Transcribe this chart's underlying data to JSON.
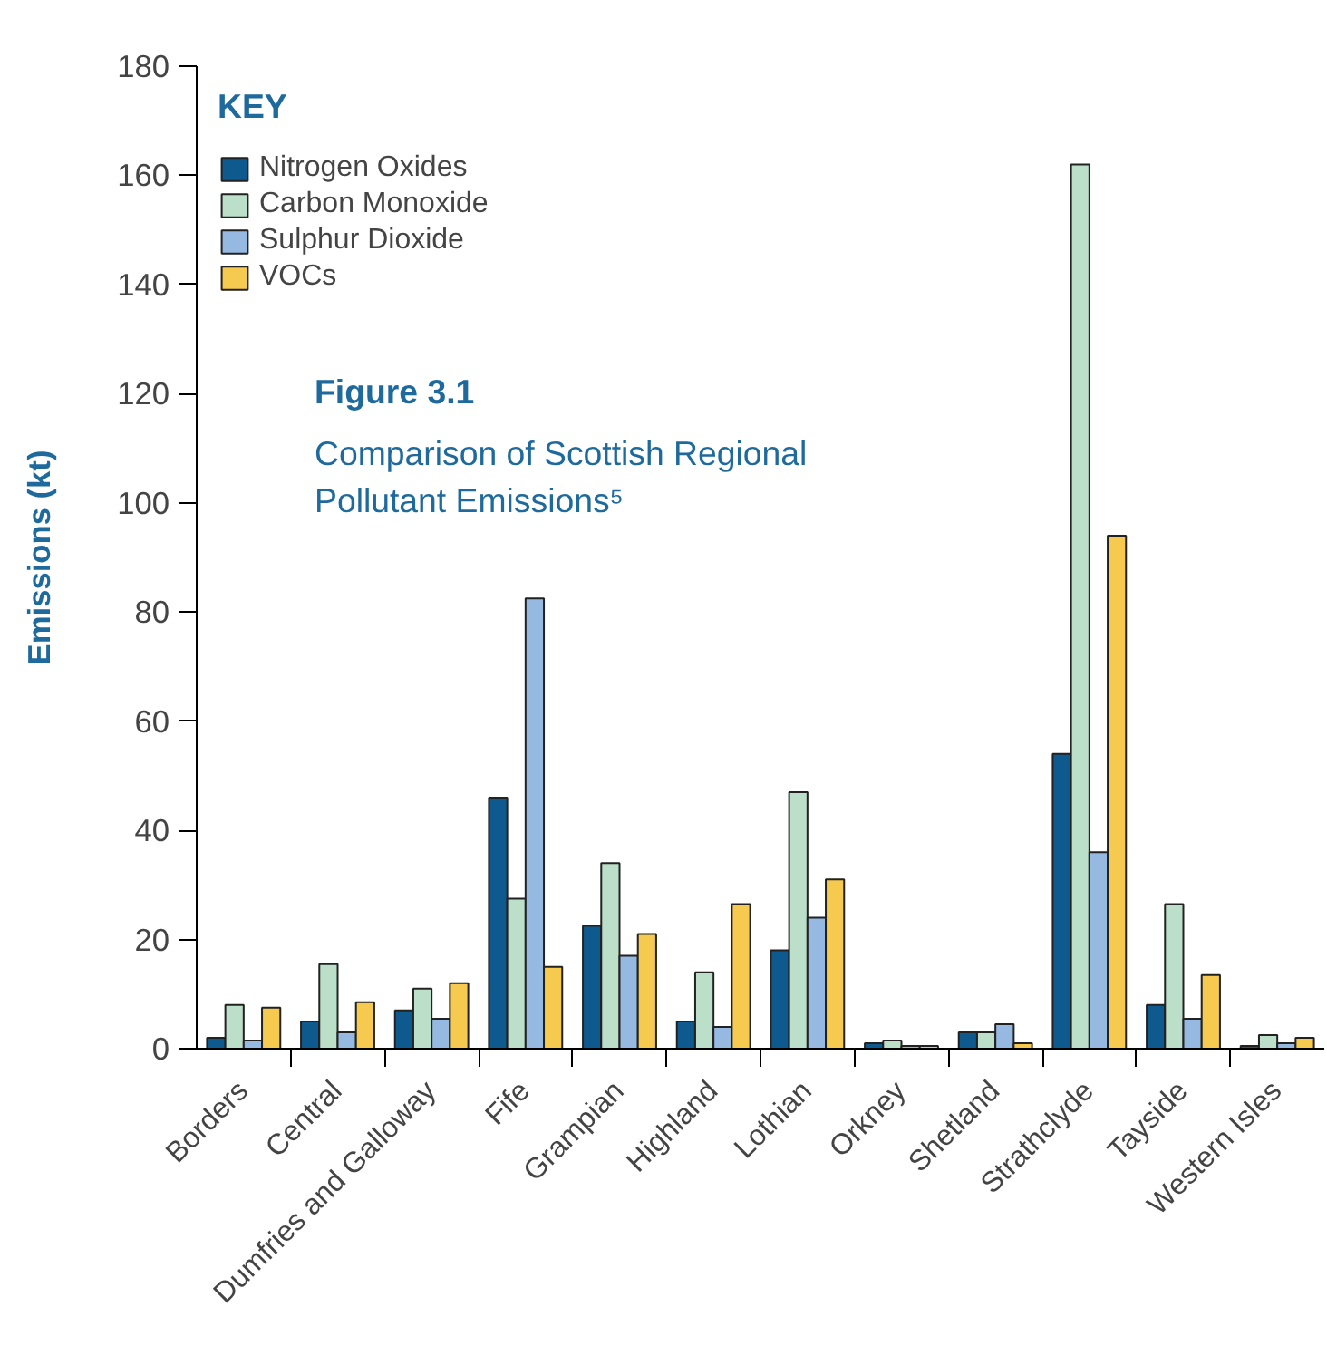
{
  "chart_data": {
    "type": "bar",
    "title": "Figure 3.1",
    "subtitle": "Comparison of Scottish Regional Pollutant Emissions⁵",
    "ylabel": "Emissions (kt)",
    "legend_title": "KEY",
    "legend": "top left",
    "grid": false,
    "categories": [
      "Borders",
      "Central",
      "Dumfries and Galloway",
      "Fife",
      "Grampian",
      "Highland",
      "Lothian",
      "Orkney",
      "Shetland",
      "Strathclyde",
      "Tayside",
      "Western Isles"
    ],
    "ylim": [
      0,
      180
    ],
    "yticks": [
      0,
      20,
      40,
      60,
      80,
      100,
      120,
      140,
      160,
      180
    ],
    "series": [
      {
        "name": "Nitrogen Oxides",
        "color": "#0e5a8f",
        "values": [
          2,
          5,
          7,
          46,
          22.5,
          5,
          18,
          1,
          3,
          54,
          8,
          0.5
        ]
      },
      {
        "name": "Carbon Monoxide",
        "color": "#bcdfc9",
        "values": [
          8,
          15.5,
          11,
          27.5,
          34,
          14,
          47,
          1.5,
          3,
          162,
          26.5,
          2.5
        ]
      },
      {
        "name": "Sulphur Dioxide",
        "color": "#96b9e1",
        "values": [
          1.5,
          3,
          5.5,
          82.5,
          17,
          4,
          24,
          0.5,
          4.5,
          36,
          5.5,
          1
        ]
      },
      {
        "name": "VOCs",
        "color": "#f6c94f",
        "values": [
          7.5,
          8.5,
          12,
          15,
          21,
          26.5,
          31,
          0.5,
          1,
          94,
          13.5,
          2
        ]
      }
    ]
  }
}
